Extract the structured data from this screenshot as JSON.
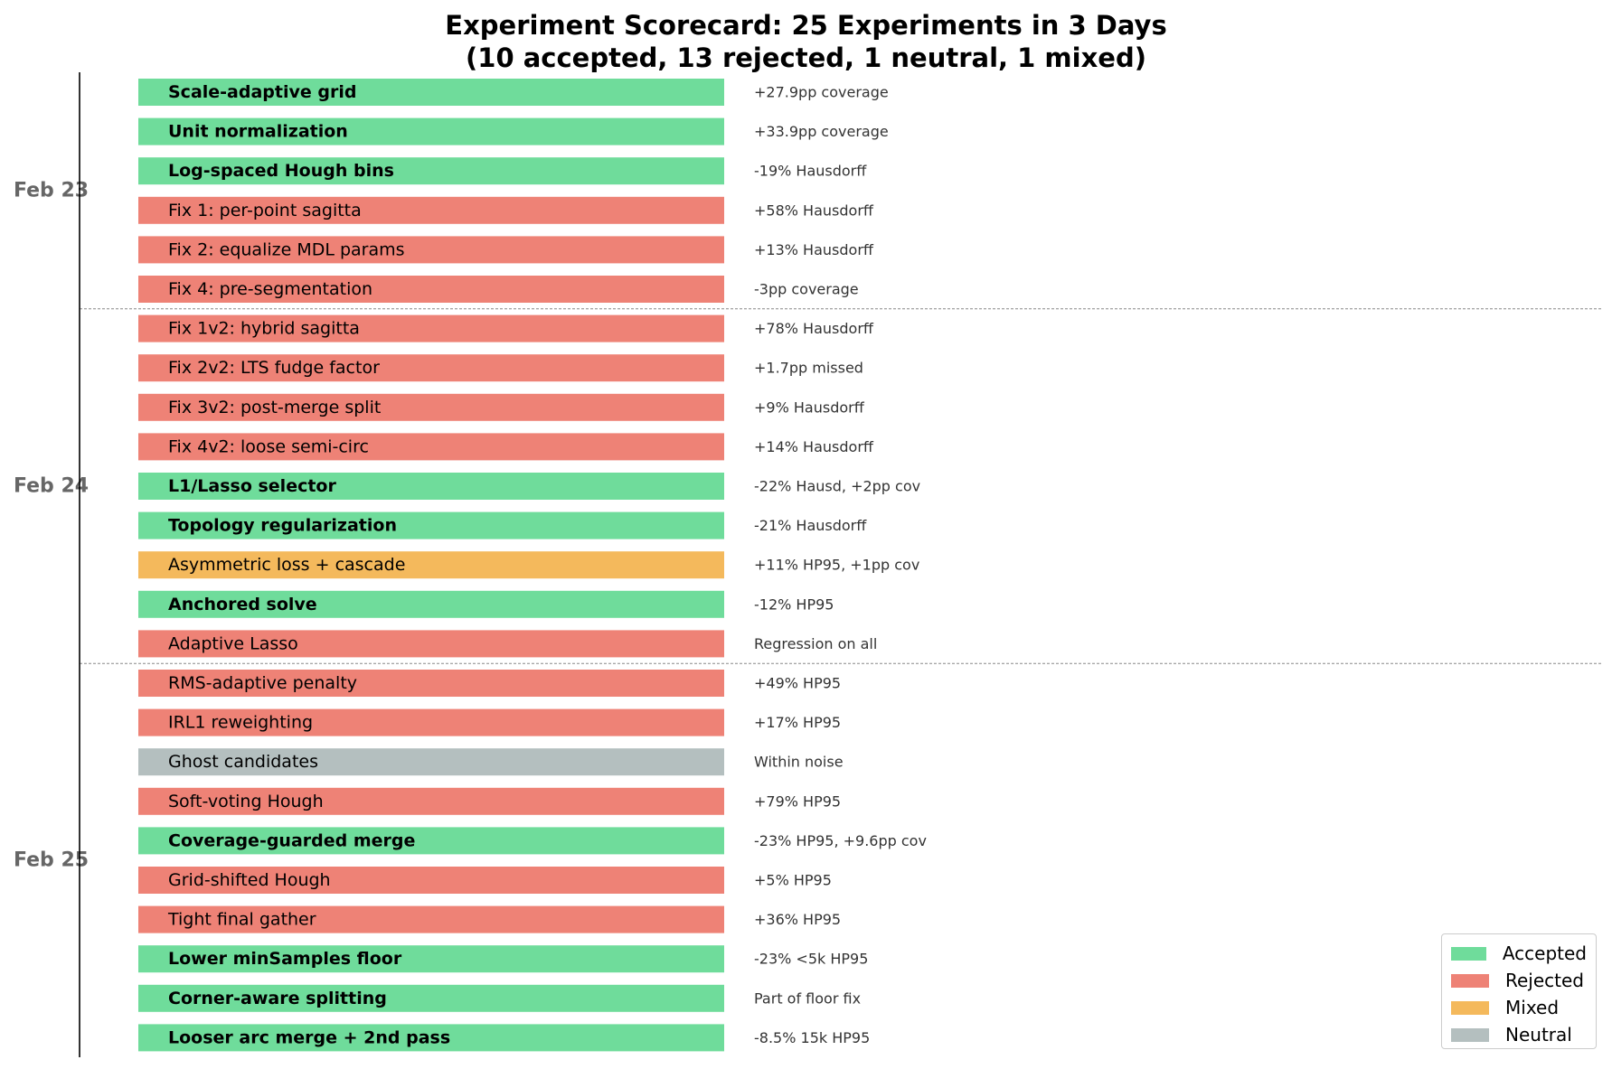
{
  "title_line1": "Experiment Scorecard: 25 Experiments in 3 Days",
  "title_line2": "(10 accepted, 13 rejected, 1 neutral, 1 mixed)",
  "colors": {
    "accepted": "#6fdc9b",
    "rejected": "#ee8276",
    "mixed": "#f4b95c",
    "neutral": "#b4bfbf",
    "axis": "#000000",
    "day_label": "#666666",
    "separator": "#888888",
    "note_text": "#333333"
  },
  "legend": [
    {
      "status": "accepted",
      "label": "Accepted"
    },
    {
      "status": "rejected",
      "label": "Rejected"
    },
    {
      "status": "mixed",
      "label": "Mixed"
    },
    {
      "status": "neutral",
      "label": "Neutral"
    }
  ],
  "chart_data": {
    "type": "bar",
    "title": "Experiment Scorecard: 25 Experiments in 3 Days (10 accepted, 13 rejected, 1 neutral, 1 mixed)",
    "grid": false,
    "legend_position": "bottom-right",
    "days": [
      {
        "label": "Feb 23",
        "experiments": [
          {
            "name": "Scale-adaptive grid",
            "status": "accepted",
            "note": "+27.9pp coverage"
          },
          {
            "name": "Unit normalization",
            "status": "accepted",
            "note": "+33.9pp coverage"
          },
          {
            "name": "Log-spaced Hough bins",
            "status": "accepted",
            "note": "-19% Hausdorff"
          },
          {
            "name": "Fix 1: per-point sagitta",
            "status": "rejected",
            "note": "+58% Hausdorff"
          },
          {
            "name": "Fix 2: equalize MDL params",
            "status": "rejected",
            "note": "+13% Hausdorff"
          },
          {
            "name": "Fix 4: pre-segmentation",
            "status": "rejected",
            "note": "-3pp coverage"
          }
        ]
      },
      {
        "label": "Feb 24",
        "experiments": [
          {
            "name": "Fix 1v2: hybrid sagitta",
            "status": "rejected",
            "note": "+78% Hausdorff"
          },
          {
            "name": "Fix 2v2: LTS fudge factor",
            "status": "rejected",
            "note": "+1.7pp missed"
          },
          {
            "name": "Fix 3v2: post-merge split",
            "status": "rejected",
            "note": "+9% Hausdorff"
          },
          {
            "name": "Fix 4v2: loose semi-circ",
            "status": "rejected",
            "note": "+14% Hausdorff"
          },
          {
            "name": "L1/Lasso selector",
            "status": "accepted",
            "note": "-22% Hausd, +2pp cov"
          },
          {
            "name": "Topology regularization",
            "status": "accepted",
            "note": "-21% Hausdorff"
          },
          {
            "name": "Asymmetric loss + cascade",
            "status": "mixed",
            "note": "+11% HP95, +1pp cov"
          },
          {
            "name": "Anchored solve",
            "status": "accepted",
            "note": "-12% HP95"
          },
          {
            "name": "Adaptive Lasso",
            "status": "rejected",
            "note": "Regression on all"
          }
        ]
      },
      {
        "label": "Feb 25",
        "experiments": [
          {
            "name": "RMS-adaptive penalty",
            "status": "rejected",
            "note": "+49% HP95"
          },
          {
            "name": "IRL1 reweighting",
            "status": "rejected",
            "note": "+17% HP95"
          },
          {
            "name": "Ghost candidates",
            "status": "neutral",
            "note": "Within noise"
          },
          {
            "name": "Soft-voting Hough",
            "status": "rejected",
            "note": "+79% HP95"
          },
          {
            "name": "Coverage-guarded merge",
            "status": "accepted",
            "note": "-23% HP95, +9.6pp cov"
          },
          {
            "name": "Grid-shifted Hough",
            "status": "rejected",
            "note": "+5% HP95"
          },
          {
            "name": "Tight final gather",
            "status": "rejected",
            "note": "+36% HP95"
          },
          {
            "name": "Lower minSamples floor",
            "status": "accepted",
            "note": "-23% <5k HP95"
          },
          {
            "name": "Corner-aware splitting",
            "status": "accepted",
            "note": "Part of floor fix"
          },
          {
            "name": "Looser arc merge + 2nd pass",
            "status": "accepted",
            "note": "-8.5% 15k HP95"
          }
        ]
      }
    ]
  }
}
